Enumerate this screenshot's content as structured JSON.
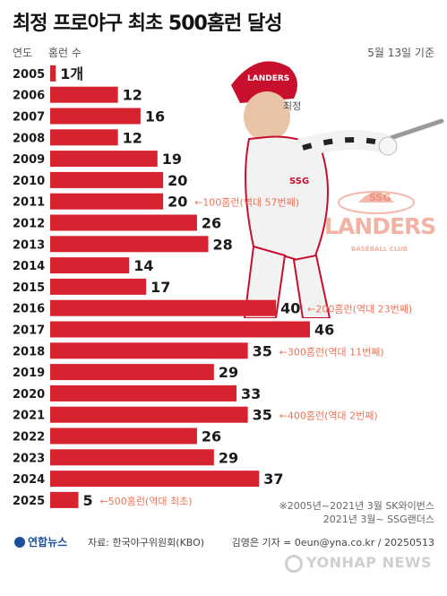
{
  "title": "최정 프로야구 최초 500홈런 달성",
  "header": {
    "col_year": "연도",
    "col_hr": "홈런 수",
    "date": "5월 13일 기준"
  },
  "player_label": "최정",
  "logo": {
    "top": "SSG",
    "main": "LANDERS",
    "sub": "BASEBALL CLUB"
  },
  "colors": {
    "bar": "#d7232f",
    "milestone": "#e8755a",
    "text": "#1a1a1a"
  },
  "chart_data": {
    "type": "bar",
    "orientation": "horizontal",
    "categories": [
      "2005",
      "2006",
      "2007",
      "2008",
      "2009",
      "2010",
      "2011",
      "2012",
      "2013",
      "2014",
      "2015",
      "2016",
      "2017",
      "2018",
      "2019",
      "2020",
      "2021",
      "2022",
      "2023",
      "2024",
      "2025"
    ],
    "values": [
      1,
      12,
      16,
      12,
      19,
      20,
      20,
      26,
      28,
      14,
      17,
      40,
      46,
      35,
      29,
      33,
      35,
      26,
      29,
      37,
      5
    ],
    "value_labels": [
      "1개",
      "12",
      "16",
      "12",
      "19",
      "20",
      "20",
      "26",
      "28",
      "14",
      "17",
      "40",
      "46",
      "35",
      "29",
      "33",
      "35",
      "26",
      "29",
      "37",
      "5"
    ],
    "annotations": [
      {
        "year": "2011",
        "text": "←100홈런(역대 57번째)"
      },
      {
        "year": "2016",
        "text": "←200홈런(역대 23번째)"
      },
      {
        "year": "2018",
        "text": "←300홈런(역대 11번째)"
      },
      {
        "year": "2021",
        "text": "←400홈런(역대 2번째)"
      },
      {
        "year": "2025",
        "text": "←500홈런(역대 최초)"
      }
    ],
    "xlim": [
      0,
      46
    ]
  },
  "notes": [
    "※2005년~2021년 3월 SK와이번스",
    "2021년 3월~ SSG랜더스"
  ],
  "footer": {
    "brand": "연합뉴스",
    "source": "자료: 한국야구위원회(KBO)",
    "credit": "김영은 기자 = 0eun@yna.co.kr / 20250513",
    "watermark": "YONHAP NEWS"
  }
}
